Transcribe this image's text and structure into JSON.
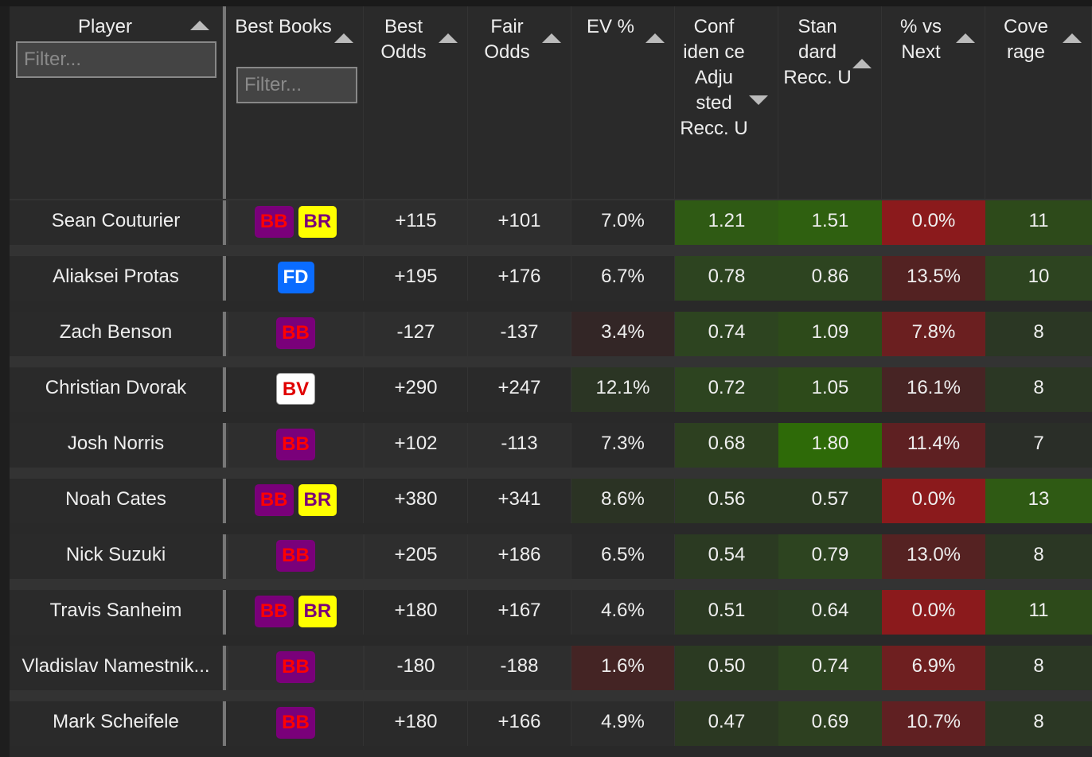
{
  "columns": [
    {
      "label": "Player",
      "sort": "up",
      "filter_placeholder": "Filter..."
    },
    {
      "label": "Best Books",
      "sort": "up",
      "filter_placeholder": "Filter..."
    },
    {
      "label": "Best Odds",
      "sort": "up"
    },
    {
      "label": "Fair Odds",
      "sort": "up"
    },
    {
      "label": "EV %",
      "sort": "up"
    },
    {
      "label": "Conf iden ce Adju sted Recc. U",
      "sort": "down"
    },
    {
      "label": "Stan dard Recc. U",
      "sort": "up"
    },
    {
      "label": "% vs Next",
      "sort": "up"
    },
    {
      "label": "Cove rage",
      "sort": "up"
    }
  ],
  "rows": [
    {
      "player": "Sean Couturier",
      "books": [
        "BB",
        "BR"
      ],
      "best_odds": "+115",
      "fair_odds": "+101",
      "ev": "7.0%",
      "conf": "1.21",
      "std": "1.51",
      "vs_next": "0.0%",
      "coverage": "11",
      "colors": {
        "ev": "#2a2a2a",
        "conf": "#2f5a14",
        "std": "#2f6010",
        "vs_next": "#8b1a1c",
        "coverage": "#2d4a1a"
      }
    },
    {
      "player": "Aliaksei Protas",
      "books": [
        "FD"
      ],
      "best_odds": "+195",
      "fair_odds": "+176",
      "ev": "6.7%",
      "conf": "0.78",
      "std": "0.86",
      "vs_next": "13.5%",
      "coverage": "10",
      "colors": {
        "ev": "#2a2a2a",
        "conf": "#2d4420",
        "std": "#2d4420",
        "vs_next": "#532222",
        "coverage": "#2d4420"
      }
    },
    {
      "player": "Zach Benson",
      "books": [
        "BB"
      ],
      "best_odds": "-127",
      "fair_odds": "-137",
      "ev": "3.4%",
      "conf": "0.74",
      "std": "1.09",
      "vs_next": "7.8%",
      "coverage": "8",
      "colors": {
        "ev": "#332626",
        "conf": "#2d4420",
        "std": "#2d4a1a",
        "vs_next": "#6b1f20",
        "coverage": "#2b3724"
      }
    },
    {
      "player": "Christian Dvorak",
      "books": [
        "BV"
      ],
      "best_odds": "+290",
      "fair_odds": "+247",
      "ev": "12.1%",
      "conf": "0.72",
      "std": "1.05",
      "vs_next": "16.1%",
      "coverage": "8",
      "colors": {
        "ev": "#2b3524",
        "conf": "#2d4420",
        "std": "#2d4a1a",
        "vs_next": "#472424",
        "coverage": "#2b3724"
      }
    },
    {
      "player": "Josh Norris",
      "books": [
        "BB"
      ],
      "best_odds": "+102",
      "fair_odds": "-113",
      "ev": "7.3%",
      "conf": "0.68",
      "std": "1.80",
      "vs_next": "11.4%",
      "coverage": "7",
      "colors": {
        "ev": "#2a2a2a",
        "conf": "#2d4020",
        "std": "#2e6a08",
        "vs_next": "#5e2022",
        "coverage": "#2a2e28"
      }
    },
    {
      "player": "Noah Cates",
      "books": [
        "BB",
        "BR"
      ],
      "best_odds": "+380",
      "fair_odds": "+341",
      "ev": "8.6%",
      "conf": "0.56",
      "std": "0.57",
      "vs_next": "0.0%",
      "coverage": "13",
      "colors": {
        "ev": "#2b3324",
        "conf": "#2b3a22",
        "std": "#2b3a22",
        "vs_next": "#8b1a1c",
        "coverage": "#2f5a14"
      }
    },
    {
      "player": "Nick Suzuki",
      "books": [
        "BB"
      ],
      "best_odds": "+205",
      "fair_odds": "+186",
      "ev": "6.5%",
      "conf": "0.54",
      "std": "0.79",
      "vs_next": "13.0%",
      "coverage": "8",
      "colors": {
        "ev": "#2a2a2a",
        "conf": "#2b3a22",
        "std": "#2d4420",
        "vs_next": "#552222",
        "coverage": "#2b3724"
      }
    },
    {
      "player": "Travis Sanheim",
      "books": [
        "BB",
        "BR"
      ],
      "best_odds": "+180",
      "fair_odds": "+167",
      "ev": "4.6%",
      "conf": "0.51",
      "std": "0.64",
      "vs_next": "0.0%",
      "coverage": "11",
      "colors": {
        "ev": "#2c2c2c",
        "conf": "#2b3a22",
        "std": "#2b3e22",
        "vs_next": "#8b1a1c",
        "coverage": "#2d4a1a"
      }
    },
    {
      "player": "Vladislav Namestnik...",
      "books": [
        "BB"
      ],
      "best_odds": "-180",
      "fair_odds": "-188",
      "ev": "1.6%",
      "conf": "0.50",
      "std": "0.74",
      "vs_next": "6.9%",
      "coverage": "8",
      "colors": {
        "ev": "#442424",
        "conf": "#2b3a22",
        "std": "#2d4420",
        "vs_next": "#6e1f20",
        "coverage": "#2b3724"
      }
    },
    {
      "player": "Mark Scheifele",
      "books": [
        "BB"
      ],
      "best_odds": "+180",
      "fair_odds": "+166",
      "ev": "4.9%",
      "conf": "0.47",
      "std": "0.69",
      "vs_next": "10.7%",
      "coverage": "8",
      "colors": {
        "ev": "#2c2c2c",
        "conf": "#2b3822",
        "std": "#2d4020",
        "vs_next": "#602022",
        "coverage": "#2b3724"
      }
    }
  ]
}
